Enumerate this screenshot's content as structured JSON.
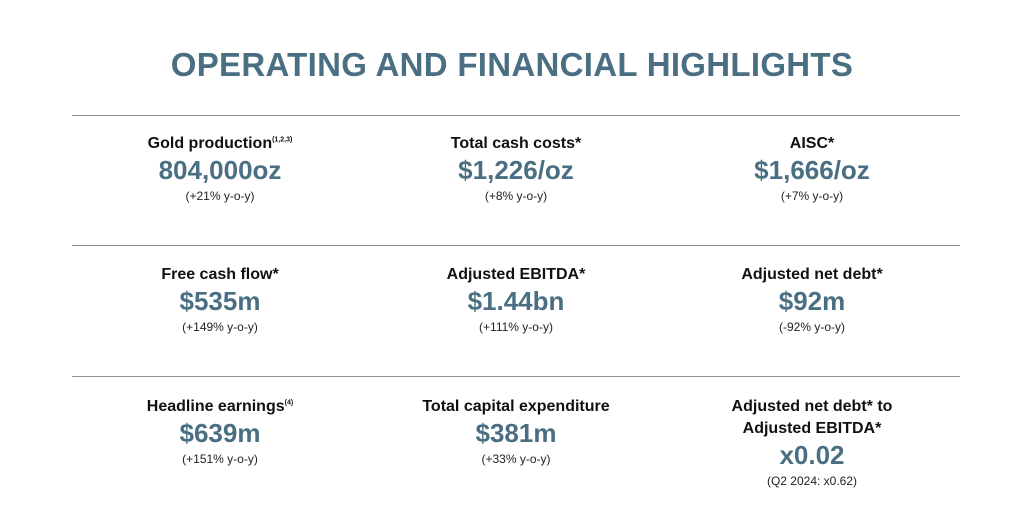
{
  "title": "OPERATING AND FINANCIAL HIGHLIGHTS",
  "colors": {
    "accent": "#4a6f82",
    "rule": "#8f8f8f",
    "text": "#111111"
  },
  "rows": [
    [
      {
        "label": "Gold production",
        "footnote": "(1,2,3)",
        "value": "804,000oz",
        "change": "(+21% y-o-y)"
      },
      {
        "label": "Total cash costs*",
        "footnote": "",
        "value": "$1,226/oz",
        "change": "(+8% y-o-y)"
      },
      {
        "label": "AISC*",
        "footnote": "",
        "value": "$1,666/oz",
        "change": "(+7% y-o-y)"
      }
    ],
    [
      {
        "label": "Free cash flow*",
        "footnote": "",
        "value": "$535m",
        "change": "(+149% y-o-y)"
      },
      {
        "label": "Adjusted EBITDA*",
        "footnote": "",
        "value": "$1.44bn",
        "change": "(+111% y-o-y)"
      },
      {
        "label": "Adjusted net debt*",
        "footnote": "",
        "value": "$92m",
        "change": "(-92% y-o-y)"
      }
    ],
    [
      {
        "label": "Headline earnings",
        "footnote": "(4)",
        "value": "$639m",
        "change": "(+151% y-o-y)"
      },
      {
        "label": "Total capital expenditure",
        "footnote": "",
        "value": "$381m",
        "change": "(+33% y-o-y)"
      },
      {
        "label": "Adjusted net debt* to",
        "label2": "Adjusted EBITDA*",
        "footnote": "",
        "value": "x0.02",
        "change": "(Q2 2024: x0.62)"
      }
    ]
  ]
}
